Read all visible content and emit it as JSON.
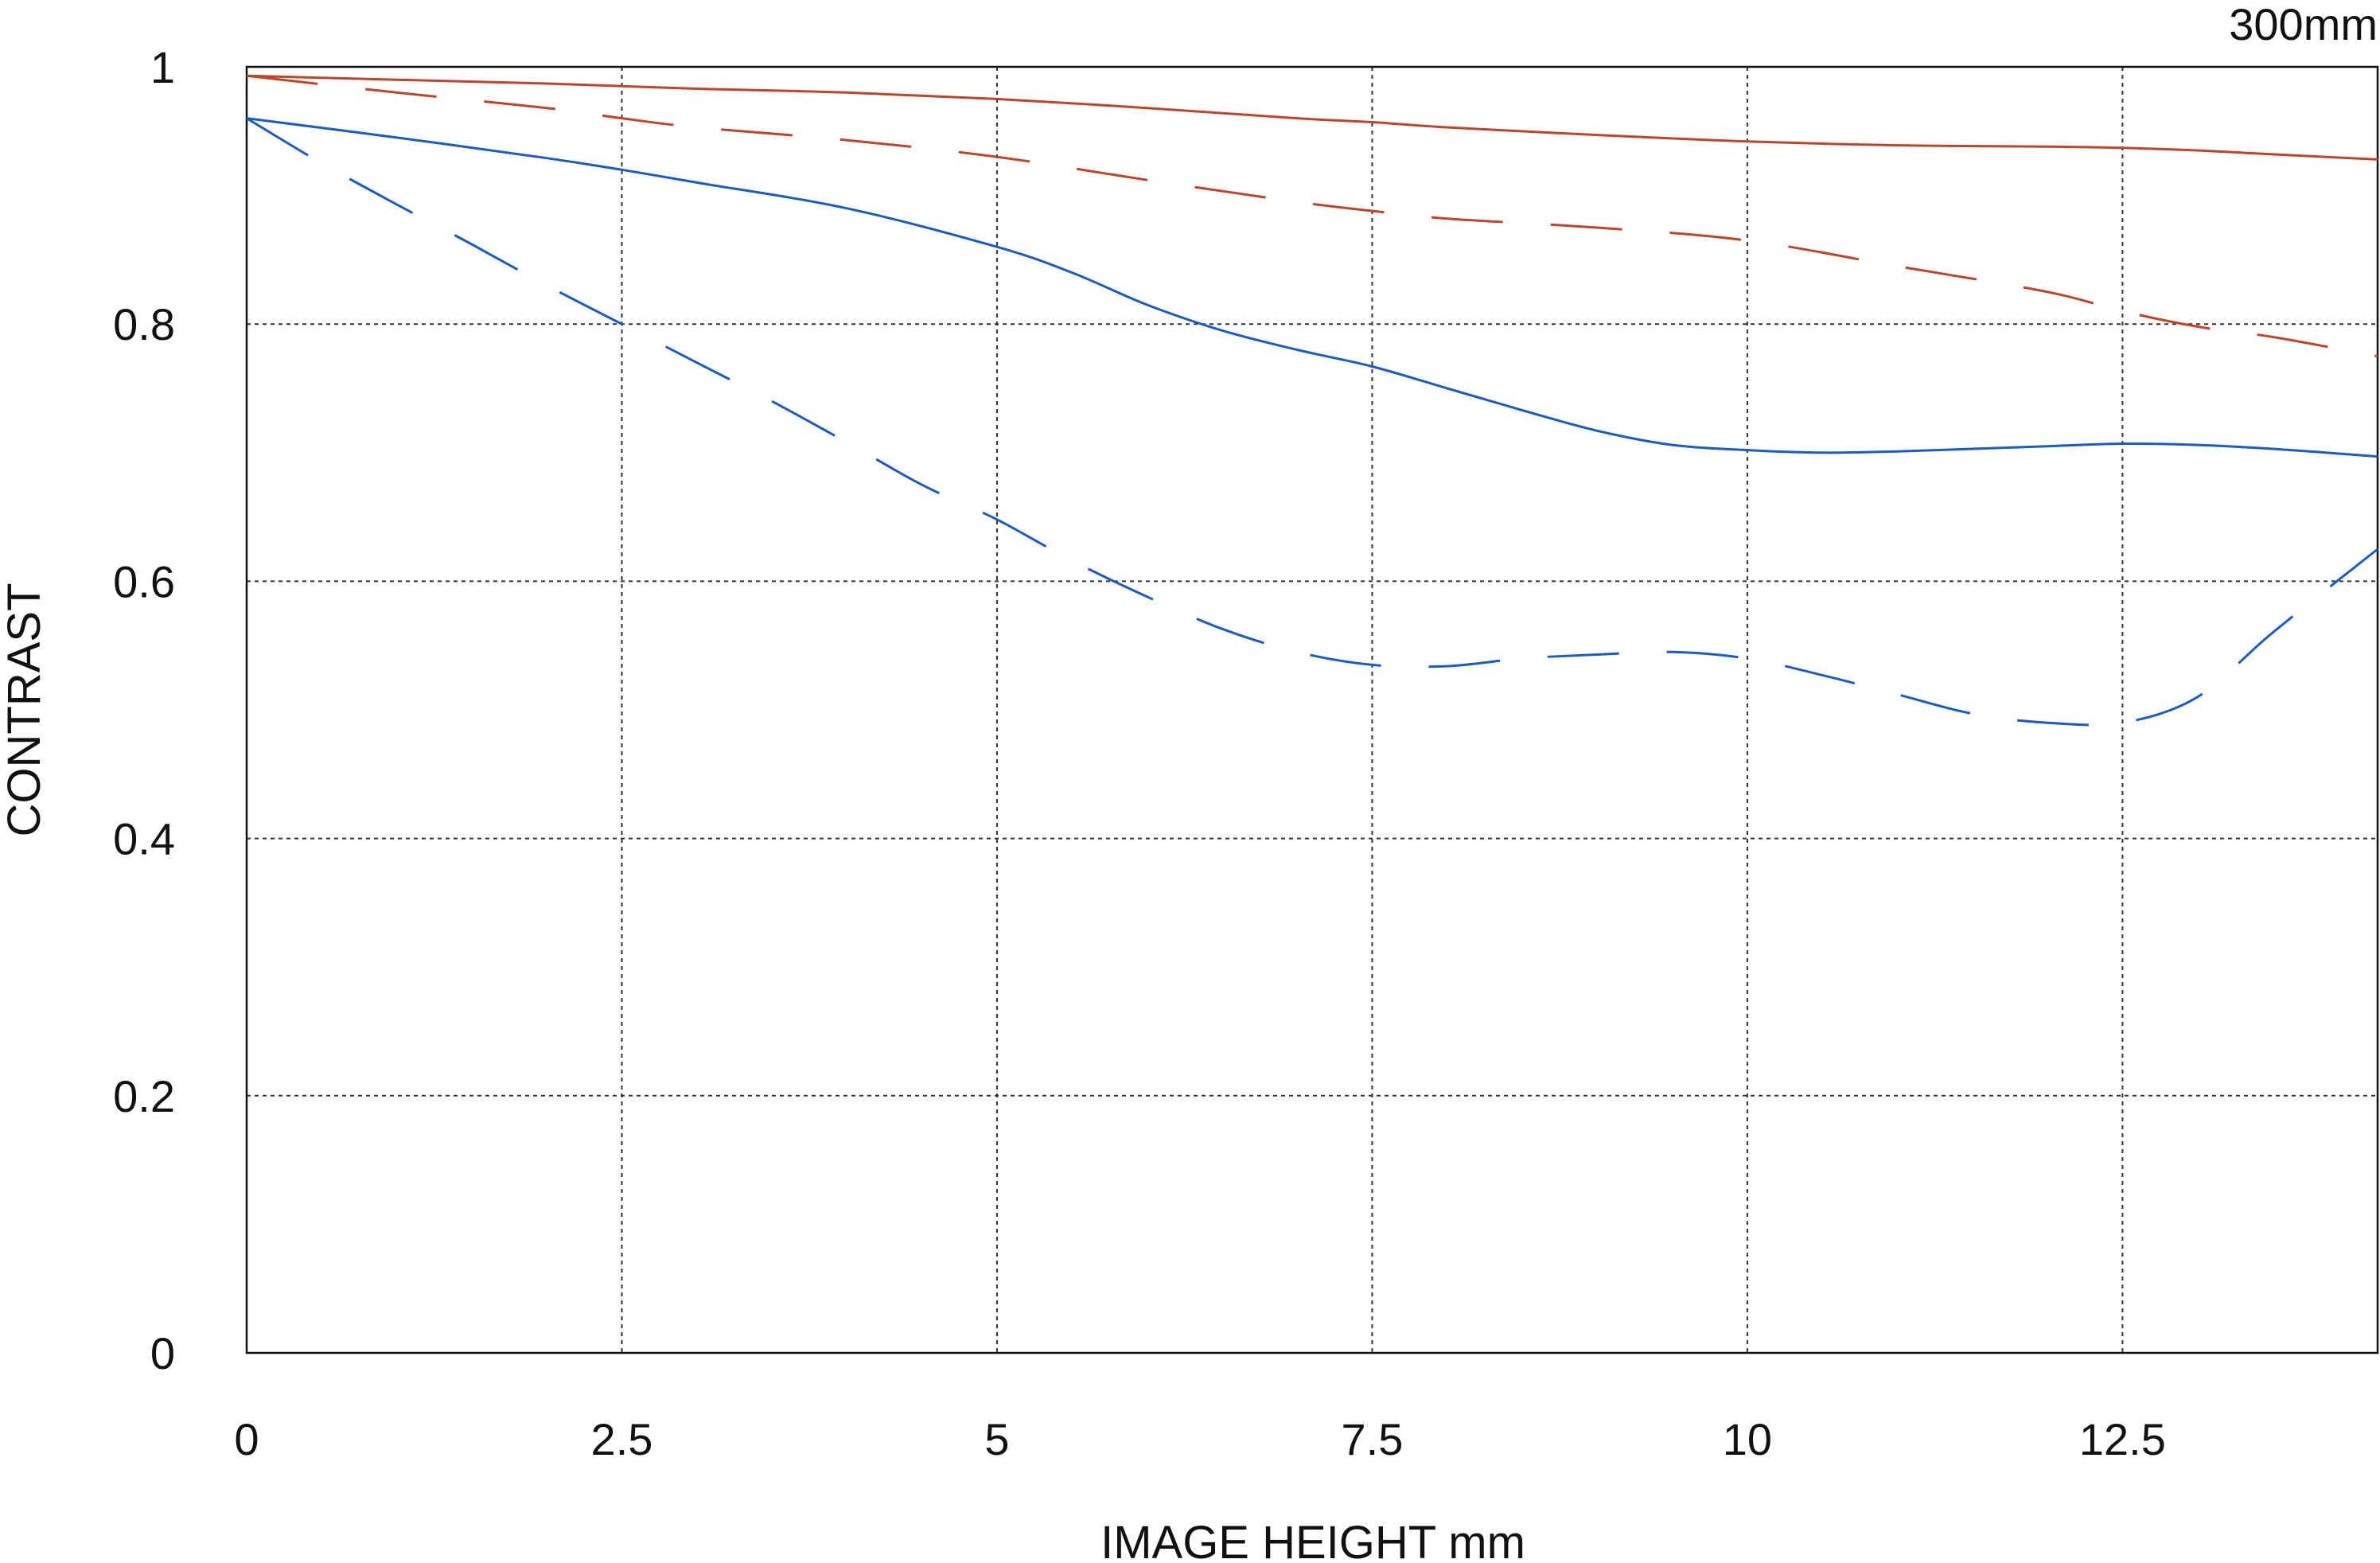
{
  "chart_data": {
    "type": "line",
    "title": "300mm",
    "xlabel": "IMAGE HEIGHT  mm",
    "ylabel": "CONTRAST",
    "xlim": [
      0,
      14.2
    ],
    "ylim": [
      0,
      1
    ],
    "x_ticks": [
      0,
      2.5,
      5,
      7.5,
      10,
      12.5
    ],
    "x_tick_labels": [
      "0",
      "2.5",
      "5",
      "7.5",
      "10",
      "12.5"
    ],
    "y_ticks": [
      0,
      0.2,
      0.4,
      0.6,
      0.8,
      1
    ],
    "y_tick_labels": [
      "0",
      "0.2",
      "0.4",
      "0.6",
      "0.8",
      "1"
    ],
    "grid": true,
    "legend": "none",
    "series": [
      {
        "color": "#c0432a",
        "style": "solid",
        "x": [
          0,
          1,
          2,
          2.5,
          3,
          4,
          5,
          6,
          7,
          7.5,
          8,
          9,
          10,
          11,
          12,
          12.5,
          13,
          13.5,
          14.2
        ],
        "y": [
          0.993,
          0.99,
          0.987,
          0.985,
          0.983,
          0.98,
          0.975,
          0.968,
          0.96,
          0.957,
          0.953,
          0.947,
          0.942,
          0.939,
          0.938,
          0.937,
          0.935,
          0.932,
          0.928
        ]
      },
      {
        "color": "#c0432a",
        "style": "dashed",
        "x": [
          0,
          1,
          2,
          2.5,
          3,
          4,
          5,
          6,
          7,
          7.5,
          8,
          9,
          10,
          11,
          12,
          12.5,
          13,
          13.5,
          14.2
        ],
        "y": [
          0.993,
          0.98,
          0.968,
          0.96,
          0.953,
          0.943,
          0.93,
          0.912,
          0.895,
          0.888,
          0.882,
          0.875,
          0.865,
          0.845,
          0.825,
          0.81,
          0.798,
          0.79,
          0.775
        ]
      },
      {
        "color": "#1a5bc9",
        "style": "solid",
        "x": [
          0,
          1,
          2,
          2.5,
          3,
          4,
          5,
          5.5,
          6,
          6.5,
          7,
          7.5,
          8,
          8.5,
          9,
          9.5,
          10,
          10.5,
          11,
          11.5,
          12,
          12.5,
          13,
          13.5,
          14.2
        ],
        "y": [
          0.96,
          0.945,
          0.929,
          0.92,
          0.91,
          0.89,
          0.86,
          0.84,
          0.815,
          0.795,
          0.78,
          0.767,
          0.75,
          0.733,
          0.717,
          0.706,
          0.702,
          0.7,
          0.701,
          0.703,
          0.705,
          0.707,
          0.706,
          0.703,
          0.697
        ]
      },
      {
        "color": "#1a5bc9",
        "style": "dashed",
        "x": [
          0,
          0.5,
          1,
          1.5,
          2,
          2.5,
          3,
          3.5,
          4,
          4.5,
          5,
          5.5,
          6,
          6.5,
          7,
          7.5,
          8,
          8.5,
          9,
          9.5,
          10,
          10.5,
          11,
          11.5,
          12,
          12.5,
          13,
          13.5,
          14.2
        ],
        "y": [
          0.96,
          0.925,
          0.893,
          0.862,
          0.83,
          0.8,
          0.77,
          0.74,
          0.708,
          0.675,
          0.648,
          0.616,
          0.588,
          0.563,
          0.545,
          0.535,
          0.534,
          0.54,
          0.543,
          0.545,
          0.54,
          0.527,
          0.512,
          0.497,
          0.49,
          0.49,
          0.51,
          0.56,
          0.625
        ]
      }
    ]
  }
}
